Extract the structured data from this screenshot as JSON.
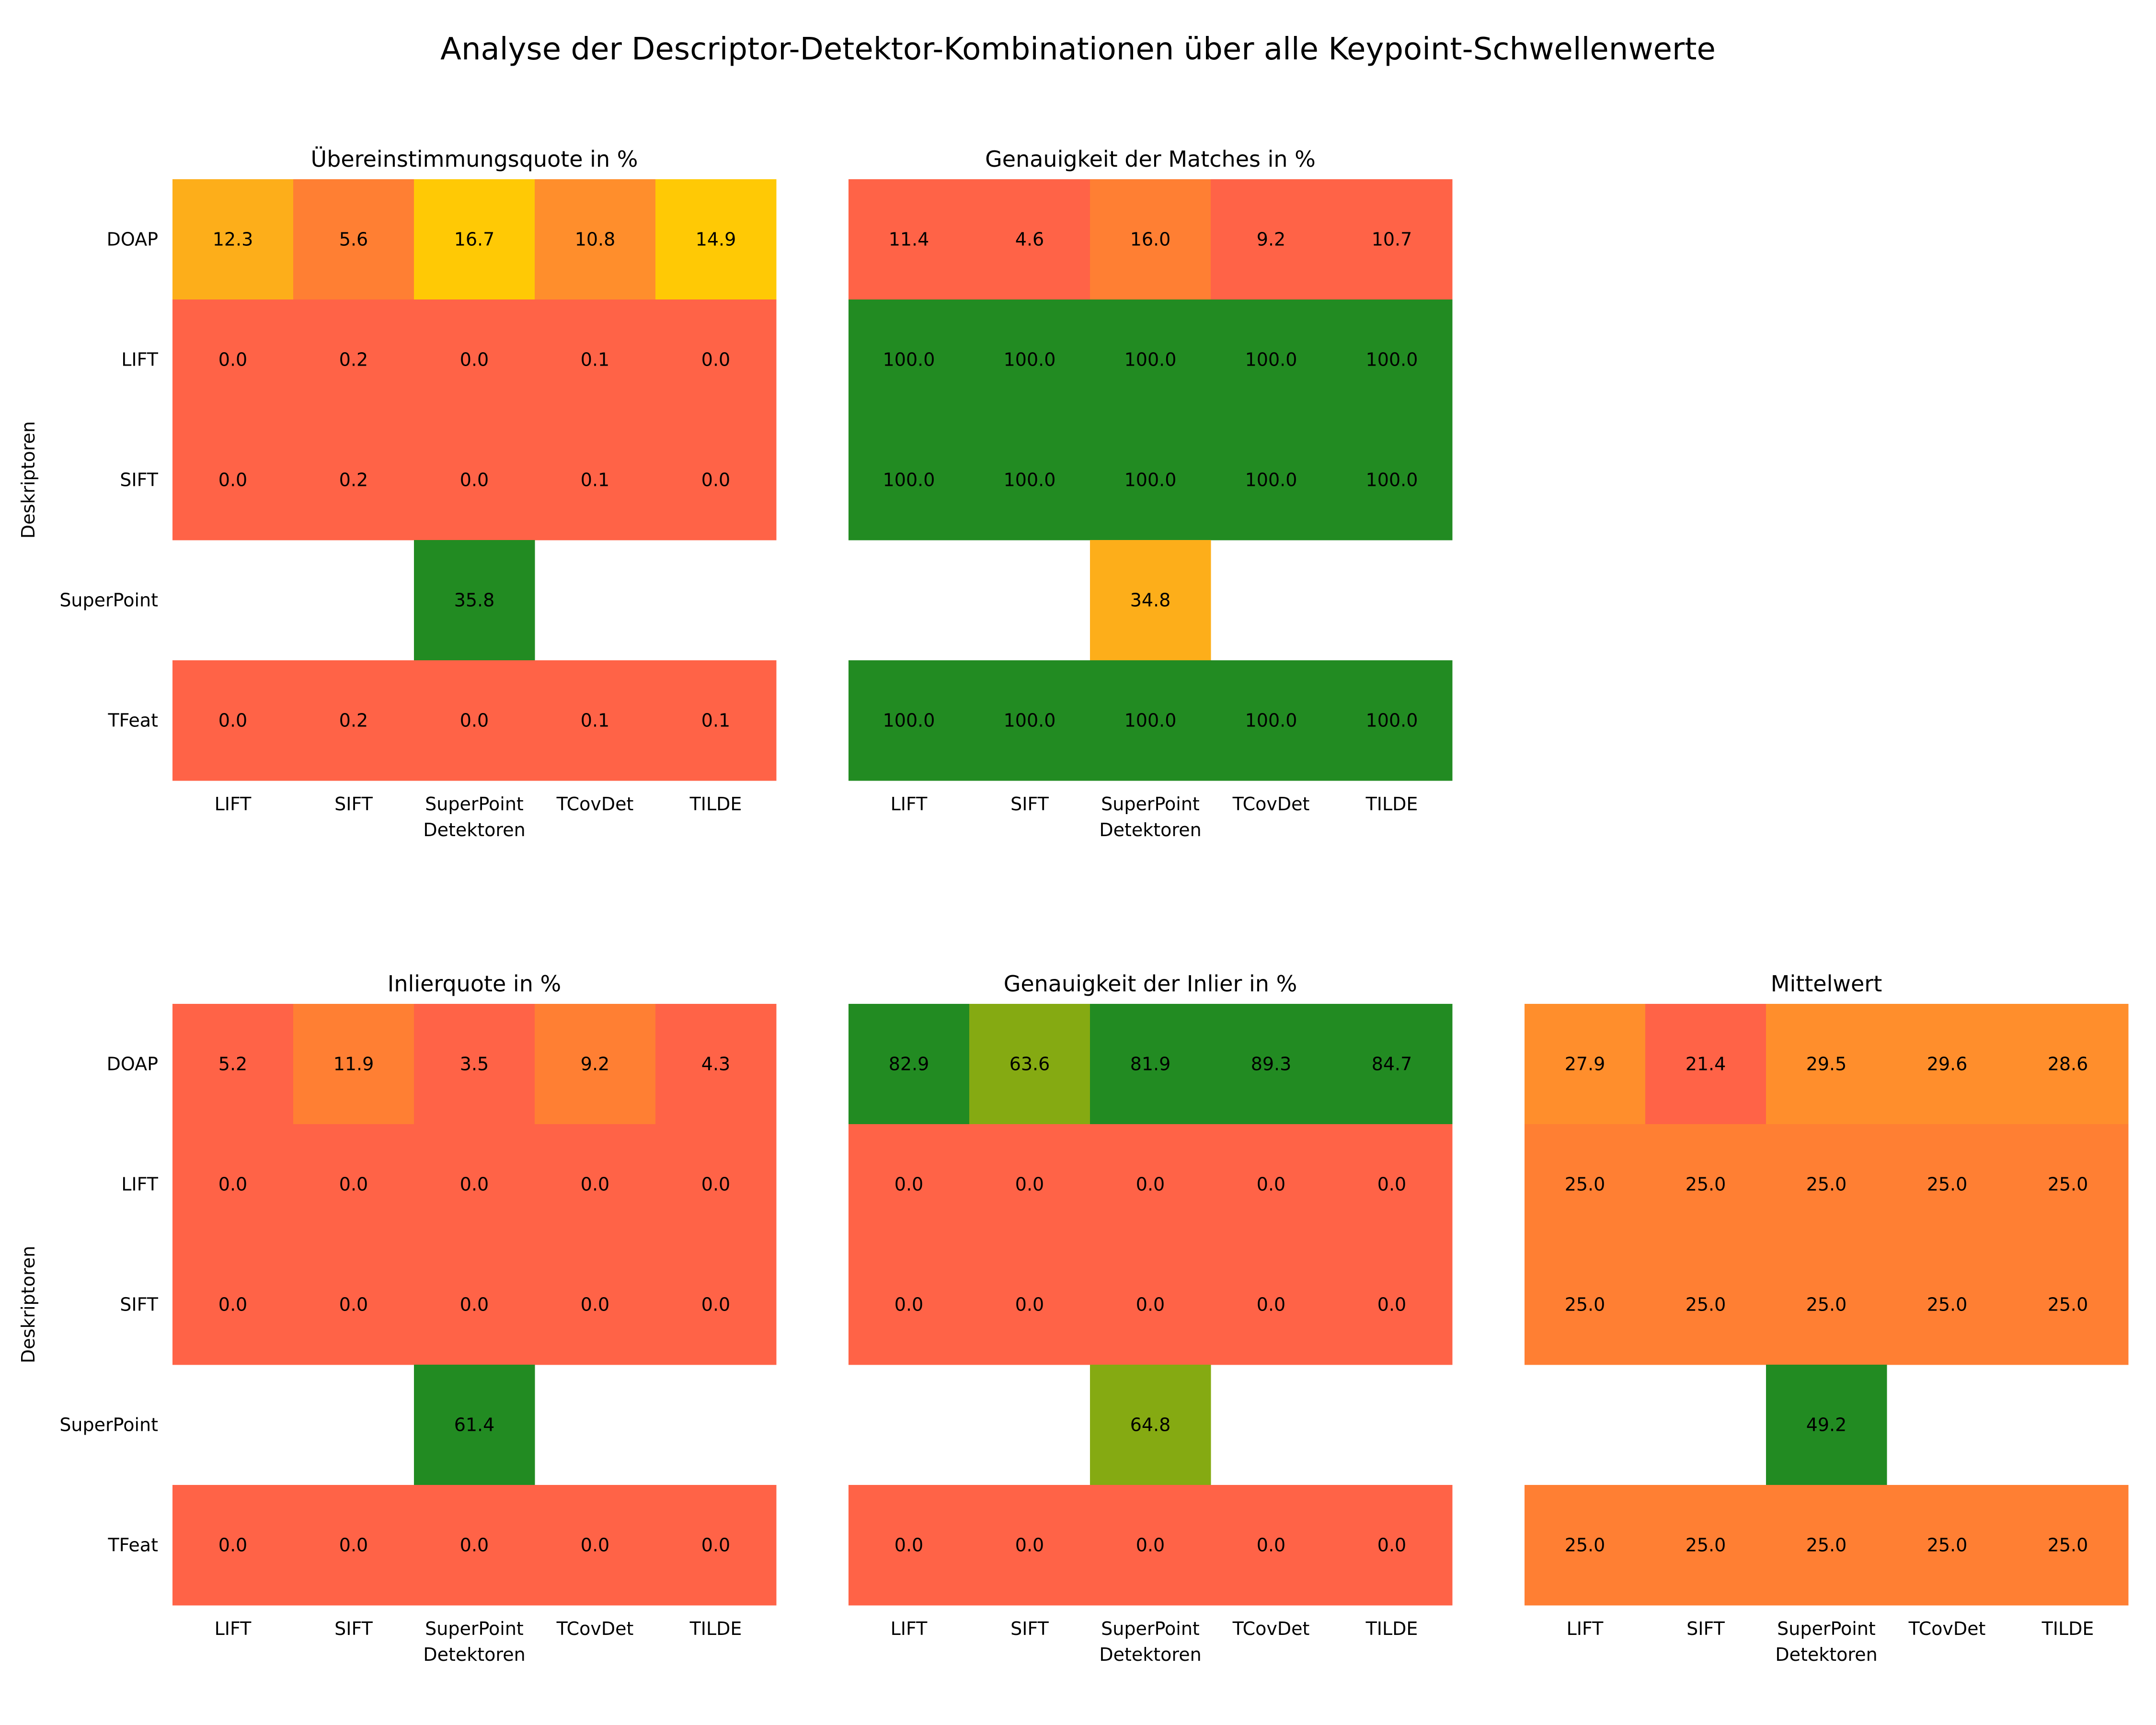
{
  "chart_data": {
    "type": "heatmap",
    "title": "Analyse der Descriptor-Detektor-Kombinationen über alle Keypoint-Schwellenwerte",
    "xlabel": "Detektoren",
    "ylabel": "Deskriptoren",
    "columns": [
      "LIFT",
      "SIFT",
      "SuperPoint",
      "TCovDet",
      "TILDE"
    ],
    "rows": [
      "DOAP",
      "LIFT",
      "SIFT",
      "SuperPoint",
      "TFeat"
    ],
    "panels": [
      {
        "title": "Übereinstimmungsquote in %",
        "values": [
          [
            "12.3",
            "5.6",
            "16.7",
            "10.8",
            "14.9"
          ],
          [
            "0.0",
            "0.2",
            "0.0",
            "0.1",
            "0.0"
          ],
          [
            "0.0",
            "0.2",
            "0.0",
            "0.1",
            "0.0"
          ],
          [
            null,
            null,
            "35.8",
            null,
            null
          ],
          [
            "0.0",
            "0.2",
            "0.0",
            "0.1",
            "0.1"
          ]
        ],
        "colors": [
          [
            "#fdae1a",
            "#ff7f33",
            "#ffc905",
            "#ff8e2c",
            "#ffc905"
          ],
          [
            "#ff6347",
            "#ff6347",
            "#ff6347",
            "#ff6347",
            "#ff6347"
          ],
          [
            "#ff6347",
            "#ff6347",
            "#ff6347",
            "#ff6347",
            "#ff6347"
          ],
          [
            null,
            null,
            "#228b22",
            null,
            null
          ],
          [
            "#ff6347",
            "#ff6347",
            "#ff6347",
            "#ff6347",
            "#ff6347"
          ]
        ]
      },
      {
        "title": "Genauigkeit der Matches in %",
        "values": [
          [
            "11.4",
            "4.6",
            "16.0",
            "9.2",
            "10.7"
          ],
          [
            "100.0",
            "100.0",
            "100.0",
            "100.0",
            "100.0"
          ],
          [
            "100.0",
            "100.0",
            "100.0",
            "100.0",
            "100.0"
          ],
          [
            null,
            null,
            "34.8",
            null,
            null
          ],
          [
            "100.0",
            "100.0",
            "100.0",
            "100.0",
            "100.0"
          ]
        ],
        "colors": [
          [
            "#ff6347",
            "#ff6347",
            "#ff7f33",
            "#ff6347",
            "#ff6347"
          ],
          [
            "#228b22",
            "#228b22",
            "#228b22",
            "#228b22",
            "#228b22"
          ],
          [
            "#228b22",
            "#228b22",
            "#228b22",
            "#228b22",
            "#228b22"
          ],
          [
            null,
            null,
            "#fdae1a",
            null,
            null
          ],
          [
            "#228b22",
            "#228b22",
            "#228b22",
            "#228b22",
            "#228b22"
          ]
        ]
      },
      {
        "title": "Inlierquote in %",
        "values": [
          [
            "5.2",
            "11.9",
            "3.5",
            "9.2",
            "4.3"
          ],
          [
            "0.0",
            "0.0",
            "0.0",
            "0.0",
            "0.0"
          ],
          [
            "0.0",
            "0.0",
            "0.0",
            "0.0",
            "0.0"
          ],
          [
            null,
            null,
            "61.4",
            null,
            null
          ],
          [
            "0.0",
            "0.0",
            "0.0",
            "0.0",
            "0.0"
          ]
        ],
        "colors": [
          [
            "#ff6347",
            "#ff7f33",
            "#ff6347",
            "#ff7f33",
            "#ff6347"
          ],
          [
            "#ff6347",
            "#ff6347",
            "#ff6347",
            "#ff6347",
            "#ff6347"
          ],
          [
            "#ff6347",
            "#ff6347",
            "#ff6347",
            "#ff6347",
            "#ff6347"
          ],
          [
            null,
            null,
            "#228b22",
            null,
            null
          ],
          [
            "#ff6347",
            "#ff6347",
            "#ff6347",
            "#ff6347",
            "#ff6347"
          ]
        ]
      },
      {
        "title": "Genauigkeit der Inlier in %",
        "values": [
          [
            "82.9",
            "63.6",
            "81.9",
            "89.3",
            "84.7"
          ],
          [
            "0.0",
            "0.0",
            "0.0",
            "0.0",
            "0.0"
          ],
          [
            "0.0",
            "0.0",
            "0.0",
            "0.0",
            "0.0"
          ],
          [
            null,
            null,
            "64.8",
            null,
            null
          ],
          [
            "0.0",
            "0.0",
            "0.0",
            "0.0",
            "0.0"
          ]
        ],
        "colors": [
          [
            "#228b22",
            "#85aa12",
            "#228b22",
            "#228b22",
            "#228b22"
          ],
          [
            "#ff6347",
            "#ff6347",
            "#ff6347",
            "#ff6347",
            "#ff6347"
          ],
          [
            "#ff6347",
            "#ff6347",
            "#ff6347",
            "#ff6347",
            "#ff6347"
          ],
          [
            null,
            null,
            "#85aa12",
            null,
            null
          ],
          [
            "#ff6347",
            "#ff6347",
            "#ff6347",
            "#ff6347",
            "#ff6347"
          ]
        ]
      },
      {
        "title": "Mittelwert",
        "values": [
          [
            "27.9",
            "21.4",
            "29.5",
            "29.6",
            "28.6"
          ],
          [
            "25.0",
            "25.0",
            "25.0",
            "25.0",
            "25.0"
          ],
          [
            "25.0",
            "25.0",
            "25.0",
            "25.0",
            "25.0"
          ],
          [
            null,
            null,
            "49.2",
            null,
            null
          ],
          [
            "25.0",
            "25.0",
            "25.0",
            "25.0",
            "25.0"
          ]
        ],
        "colors": [
          [
            "#ff8e2c",
            "#ff6347",
            "#ff8e2c",
            "#ff8e2c",
            "#ff8e2c"
          ],
          [
            "#ff7f33",
            "#ff7f33",
            "#ff7f33",
            "#ff7f33",
            "#ff7f33"
          ],
          [
            "#ff7f33",
            "#ff7f33",
            "#ff7f33",
            "#ff7f33",
            "#ff7f33"
          ],
          [
            null,
            null,
            "#228b22",
            null,
            null
          ],
          [
            "#ff7f33",
            "#ff7f33",
            "#ff7f33",
            "#ff7f33",
            "#ff7f33"
          ]
        ]
      }
    ]
  }
}
